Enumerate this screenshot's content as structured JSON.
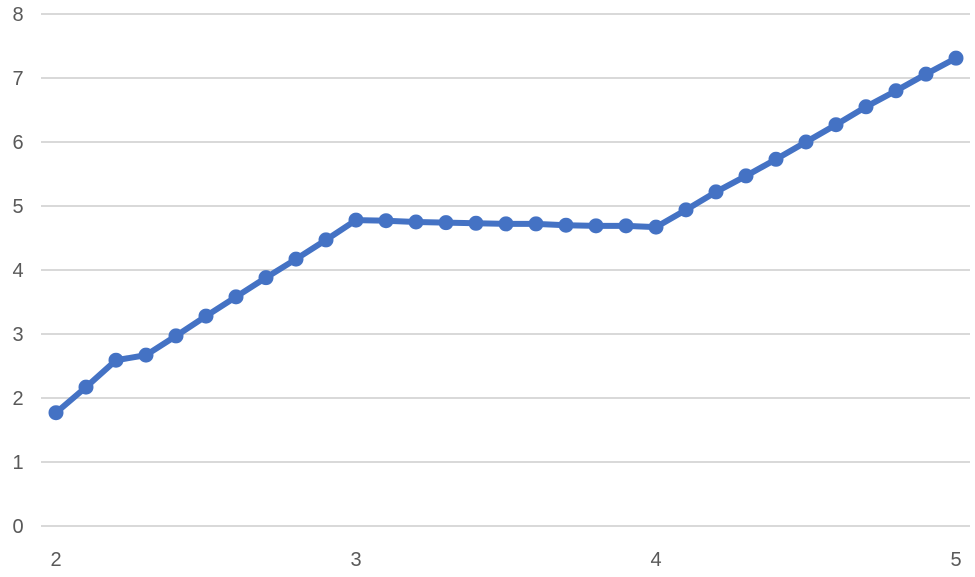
{
  "chart_data": {
    "type": "line",
    "title": "",
    "xlabel": "",
    "ylabel": "",
    "xlim": [
      2,
      5
    ],
    "ylim": [
      0,
      8
    ],
    "x_ticks": [
      2,
      3,
      4,
      5
    ],
    "y_ticks": [
      0,
      1,
      2,
      3,
      4,
      5,
      6,
      7,
      8
    ],
    "grid": "horizontal",
    "legend": "none",
    "series": [
      {
        "color": "#4472C4",
        "markers": true,
        "x": [
          2.0,
          2.1,
          2.2,
          2.3,
          2.4,
          2.5,
          2.6,
          2.7,
          2.8,
          2.9,
          3.0,
          3.1,
          3.2,
          3.3,
          3.4,
          3.5,
          3.6,
          3.7,
          3.8,
          3.9,
          4.0,
          4.1,
          4.2,
          4.3,
          4.4,
          4.5,
          4.6,
          4.7,
          4.8,
          4.9,
          5.0
        ],
        "y": [
          1.77,
          2.17,
          2.59,
          2.67,
          2.97,
          3.28,
          3.58,
          3.88,
          4.17,
          4.47,
          4.78,
          4.77,
          4.75,
          4.74,
          4.73,
          4.72,
          4.72,
          4.7,
          4.69,
          4.69,
          4.67,
          4.94,
          5.22,
          5.47,
          5.73,
          6.0,
          6.27,
          6.55,
          6.8,
          7.06,
          7.31
        ]
      }
    ]
  }
}
